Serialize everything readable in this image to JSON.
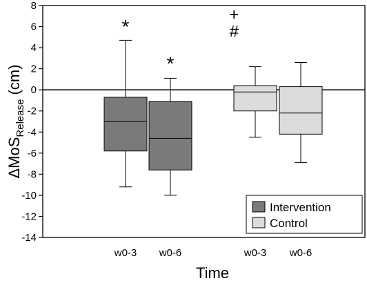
{
  "chart_data": {
    "type": "boxplot",
    "ylabel_main": "ΔMoS",
    "ylabel_sub": "Release",
    "ylabel_unit": " (cm)",
    "xlabel": "Time",
    "ylim": [
      -14,
      8
    ],
    "yticks": [
      8,
      6,
      4,
      2,
      0,
      -2,
      -4,
      -6,
      -8,
      -10,
      -12,
      -14
    ],
    "ytick_labels": [
      "8",
      "6",
      "4",
      "2",
      "0",
      "-2",
      "-4",
      "-6",
      "-8",
      "-10",
      "-12",
      "-14"
    ],
    "zero_line": true,
    "categories": [
      "w0-3",
      "w0-6",
      "w0-3",
      "w0-6"
    ],
    "series": [
      {
        "name": "Intervention",
        "color": "#7a7a7a",
        "boxes": [
          {
            "category": "w0-3",
            "whisker_low": -9.2,
            "q1": -5.8,
            "median": -3.0,
            "q3": -0.7,
            "whisker_high": 4.7
          },
          {
            "category": "w0-6",
            "whisker_low": -10.0,
            "q1": -7.6,
            "median": -4.6,
            "q3": -1.1,
            "whisker_high": 1.1
          }
        ]
      },
      {
        "name": "Control",
        "color": "#dcdcdc",
        "boxes": [
          {
            "category": "w0-3",
            "whisker_low": -4.5,
            "q1": -2.0,
            "median": -0.2,
            "q3": 0.4,
            "whisker_high": 2.2
          },
          {
            "category": "w0-6",
            "whisker_low": -6.9,
            "q1": -4.2,
            "median": -2.2,
            "q3": 0.3,
            "whisker_high": 2.6
          }
        ]
      }
    ],
    "annotations": [
      {
        "text": "*",
        "category_index": 0,
        "y": 6.3
      },
      {
        "text": "*",
        "category_index": 1,
        "y": 2.8
      },
      {
        "text": "+",
        "category_index": 1.75,
        "y": 7.2
      },
      {
        "text": "#",
        "category_index": 1.75,
        "y": 5.6
      }
    ],
    "legend": {
      "placement": "bottom-right",
      "entries": [
        "Intervention",
        "Control"
      ]
    }
  }
}
